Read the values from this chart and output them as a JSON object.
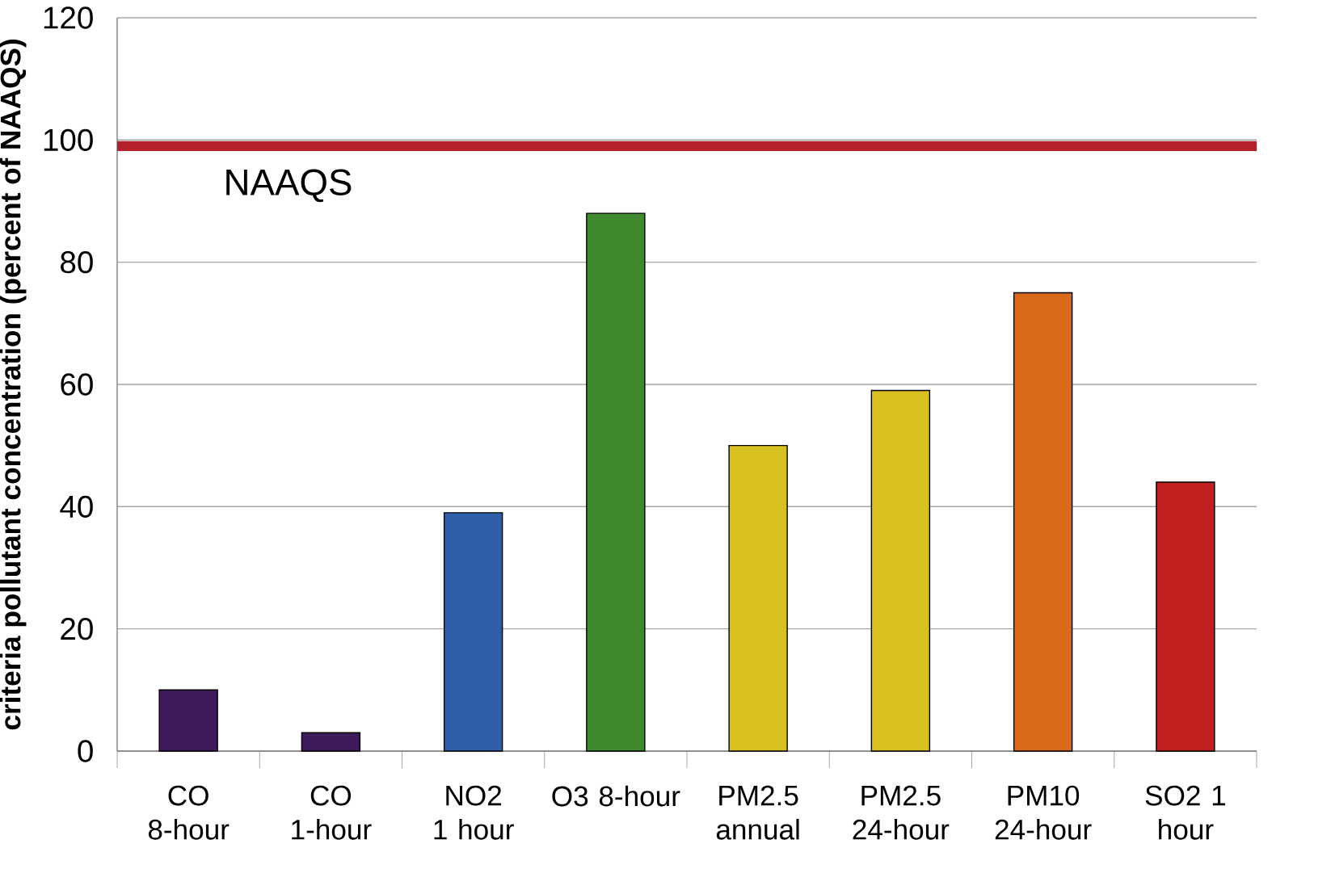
{
  "chart_data": {
    "type": "bar",
    "ylabel": "criteria pollutant concentration (percent of NAAQS)",
    "categories": [
      "CO 8-hour",
      "CO 1-hour",
      "NO2 1 hour",
      "O3 8-hour",
      "PM2.5 annual",
      "PM2.5 24-hour",
      "PM10 24-hour",
      "SO2 1 hour"
    ],
    "values": [
      10,
      3,
      39,
      88,
      50,
      59,
      75,
      44
    ],
    "colors": [
      "#3d1a5a",
      "#3d1a5a",
      "#2f5fa8",
      "#3f8a2e",
      "#d8c020",
      "#d8c020",
      "#d86a1a",
      "#c02020"
    ],
    "ylim": [
      0,
      120
    ],
    "yticks": [
      0,
      20,
      40,
      60,
      80,
      100,
      120
    ],
    "grid": "y",
    "ref_lines": [
      {
        "axis": "y",
        "value": 99,
        "label": "NAAQS",
        "color": "#b5202a"
      }
    ]
  }
}
